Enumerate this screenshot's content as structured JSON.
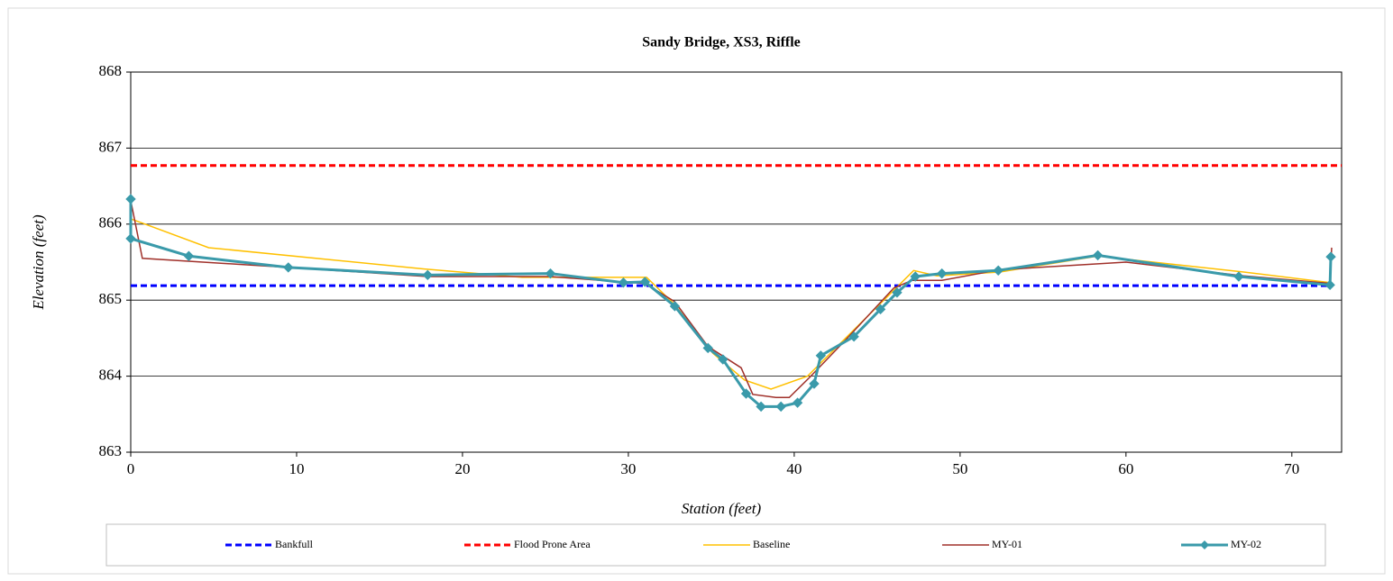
{
  "chart_data": {
    "type": "line",
    "title": "Sandy Bridge, XS3, Riffle",
    "xlabel": "Station (feet)",
    "ylabel": "Elevation (feet)",
    "xlim": [
      0,
      73
    ],
    "xticks": [
      0,
      10,
      20,
      30,
      40,
      50,
      60,
      70
    ],
    "ylim": [
      863,
      868
    ],
    "yticks": [
      863,
      864,
      865,
      866,
      867,
      868
    ],
    "grid": true,
    "legend": "bottom",
    "series": [
      {
        "name": "Bankfull",
        "color": "#0000ff",
        "dashed": true,
        "x": [
          0,
          72.4
        ],
        "values": [
          865.19,
          865.19
        ]
      },
      {
        "name": "Flood Prone Area",
        "color": "#ff0000",
        "dashed": true,
        "x": [
          0,
          73
        ],
        "values": [
          866.77,
          866.77
        ]
      },
      {
        "name": "Baseline",
        "color": "#ffc000",
        "x": [
          0,
          4.7,
          17.7,
          23.6,
          29.6,
          31.1,
          32.8,
          35.1,
          37.0,
          38.6,
          40.8,
          43.6,
          47.2,
          48.6,
          52.4,
          58.3,
          67.1,
          72.3
        ],
        "values": [
          866.07,
          865.69,
          865.41,
          865.3,
          865.3,
          865.3,
          864.94,
          864.3,
          863.95,
          863.83,
          864.0,
          864.61,
          865.39,
          865.32,
          865.37,
          865.58,
          865.37,
          865.23
        ]
      },
      {
        "name": "MY-01",
        "color": "#a0302a",
        "x": [
          0,
          0.7,
          9.5,
          17.9,
          25.3,
          29.6,
          31.0,
          32.8,
          34.8,
          36.8,
          37.5,
          38.9,
          39.7,
          41.0,
          43.2,
          46.0,
          47.1,
          48.9,
          52.4,
          60.0,
          67.1,
          72.3,
          72.4
        ],
        "values": [
          866.31,
          865.55,
          865.43,
          865.31,
          865.31,
          865.24,
          865.22,
          864.98,
          864.39,
          864.11,
          863.76,
          863.72,
          863.72,
          864.0,
          864.5,
          865.16,
          865.26,
          865.26,
          865.4,
          865.5,
          865.32,
          865.22,
          865.69
        ]
      },
      {
        "name": "MY-02",
        "color": "#3a9aaa",
        "marker": "diamond",
        "x": [
          0,
          0,
          3.5,
          9.5,
          17.9,
          25.3,
          29.7,
          31.0,
          32.8,
          34.8,
          35.7,
          37.1,
          38.0,
          39.2,
          40.2,
          41.2,
          41.6,
          43.6,
          45.2,
          46.2,
          47.3,
          48.9,
          52.3,
          58.3,
          66.8,
          72.3,
          72.35
        ],
        "values": [
          866.33,
          865.81,
          865.58,
          865.43,
          865.33,
          865.35,
          865.23,
          865.24,
          864.92,
          864.37,
          864.22,
          863.77,
          863.6,
          863.6,
          863.65,
          863.9,
          864.27,
          864.52,
          864.88,
          865.1,
          865.31,
          865.35,
          865.39,
          865.59,
          865.31,
          865.2,
          865.57
        ]
      }
    ]
  }
}
